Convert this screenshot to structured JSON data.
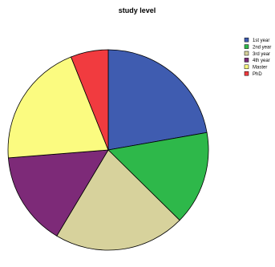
{
  "chart_data": {
    "type": "pie",
    "title": "study level",
    "categories": [
      "1st year",
      "2nd year",
      "3rd year",
      "4th year",
      "Master",
      "PhD"
    ],
    "values": [
      22,
      15,
      21,
      15,
      20,
      6
    ],
    "colors": [
      "#3f5cb0",
      "#2eb84a",
      "#d7d29c",
      "#7d2a78",
      "#fbfb80",
      "#f13b3f"
    ],
    "start": "12 o'clock",
    "direction": "clockwise",
    "legend": "top-right"
  }
}
